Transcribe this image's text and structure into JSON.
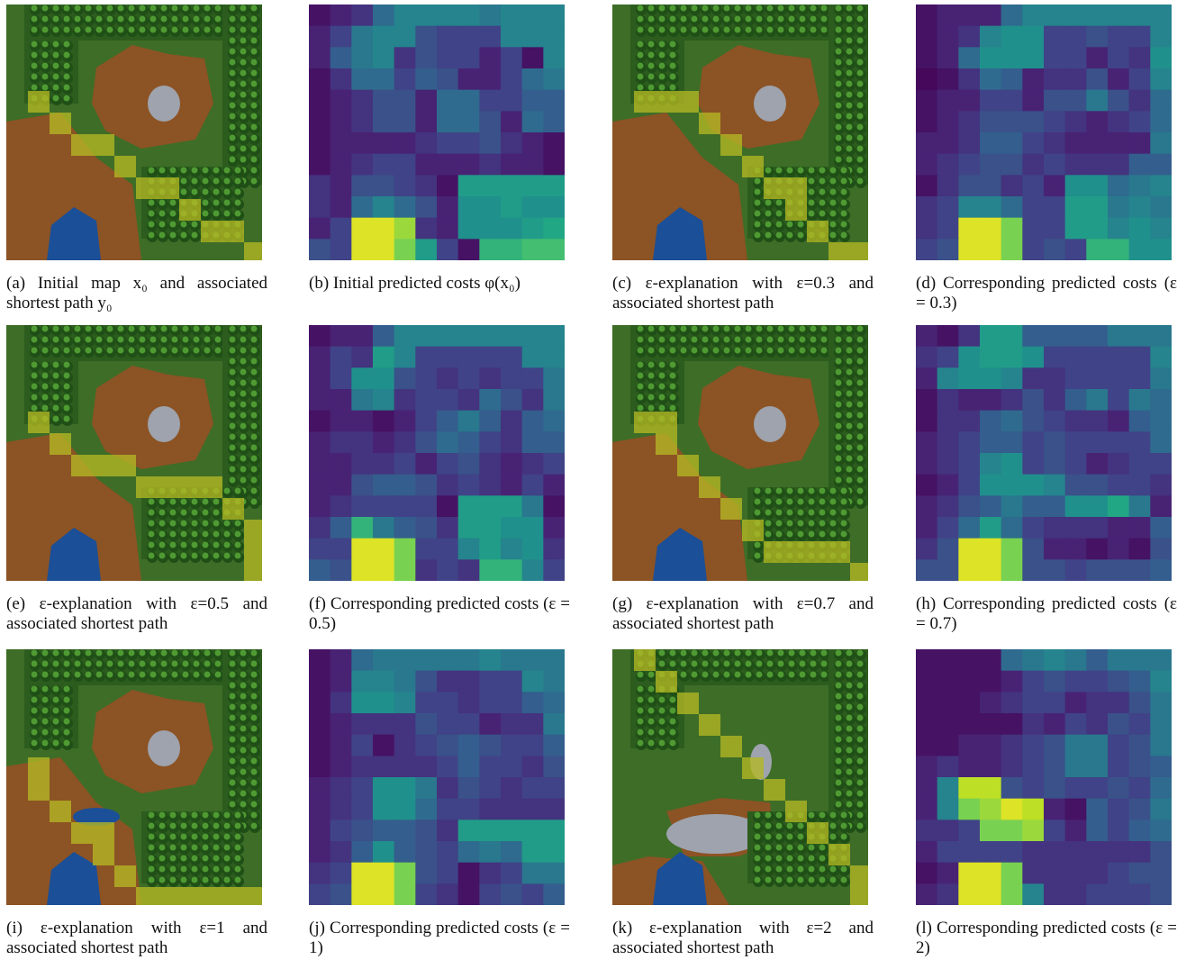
{
  "figures": [
    {
      "id": "a",
      "kind": "map",
      "variant": 0,
      "caption": "(a) Initial map x₀ and associated shortest path y₀"
    },
    {
      "id": "b",
      "kind": "cost",
      "caption": "(b) Initial predicted costs φ(x₀)"
    },
    {
      "id": "c",
      "kind": "map",
      "variant": 1,
      "caption": "(c) ε-explanation with ε=0.3 and associated shortest path"
    },
    {
      "id": "d",
      "kind": "cost",
      "caption": "(d) Corresponding predicted costs (ε = 0.3)"
    },
    {
      "id": "e",
      "kind": "map",
      "variant": 2,
      "caption": "(e) ε-explanation with ε=0.5 and associated shortest path"
    },
    {
      "id": "f",
      "kind": "cost",
      "caption": "(f) Corresponding predicted costs (ε = 0.5)"
    },
    {
      "id": "g",
      "kind": "map",
      "variant": 3,
      "caption": "(g) ε-explanation with ε=0.7 and associated shortest path"
    },
    {
      "id": "h",
      "kind": "cost",
      "caption": "(h) Corresponding predicted costs (ε = 0.7)"
    },
    {
      "id": "i",
      "kind": "map",
      "variant": 4,
      "caption": "(i) ε-explanation with ε=1 and associated shortest path"
    },
    {
      "id": "j",
      "kind": "cost",
      "caption": "(j) Corresponding predicted costs (ε = 1)"
    },
    {
      "id": "k",
      "kind": "map",
      "variant": 5,
      "caption": "(k) ε-explanation with ε=2 and associated shortest path"
    },
    {
      "id": "l",
      "kind": "cost",
      "caption": "(l) Corresponding predicted costs (ε = 2)"
    }
  ],
  "cost_grids": {
    "b": [
      [
        0.05,
        0.1,
        0.15,
        0.35,
        0.45,
        0.45,
        0.45,
        0.45,
        0.4,
        0.45,
        0.45,
        0.45
      ],
      [
        0.1,
        0.2,
        0.4,
        0.45,
        0.45,
        0.25,
        0.2,
        0.2,
        0.2,
        0.45,
        0.45,
        0.45
      ],
      [
        0.1,
        0.3,
        0.4,
        0.45,
        0.15,
        0.25,
        0.2,
        0.2,
        0.1,
        0.2,
        0.05,
        0.45
      ],
      [
        0.05,
        0.15,
        0.35,
        0.35,
        0.2,
        0.3,
        0.25,
        0.1,
        0.1,
        0.2,
        0.35,
        0.4
      ],
      [
        0.05,
        0.1,
        0.15,
        0.25,
        0.25,
        0.1,
        0.35,
        0.35,
        0.2,
        0.2,
        0.3,
        0.3
      ],
      [
        0.05,
        0.1,
        0.15,
        0.25,
        0.25,
        0.1,
        0.35,
        0.35,
        0.25,
        0.1,
        0.35,
        0.3
      ],
      [
        0.05,
        0.1,
        0.1,
        0.1,
        0.1,
        0.15,
        0.2,
        0.2,
        0.25,
        0.15,
        0.1,
        0.05
      ],
      [
        0.05,
        0.1,
        0.15,
        0.2,
        0.2,
        0.1,
        0.1,
        0.1,
        0.15,
        0.1,
        0.1,
        0.05
      ],
      [
        0.15,
        0.1,
        0.25,
        0.25,
        0.2,
        0.15,
        0.05,
        0.55,
        0.55,
        0.55,
        0.55,
        0.55
      ],
      [
        0.15,
        0.1,
        0.35,
        0.45,
        0.35,
        0.25,
        0.1,
        0.5,
        0.5,
        0.55,
        0.5,
        0.5
      ],
      [
        0.1,
        0.2,
        0.95,
        0.95,
        0.85,
        0.15,
        0.1,
        0.5,
        0.5,
        0.5,
        0.55,
        0.6
      ],
      [
        0.25,
        0.2,
        0.95,
        0.95,
        0.8,
        0.55,
        0.2,
        0.05,
        0.65,
        0.65,
        0.7,
        0.7
      ]
    ],
    "d": [
      [
        0.05,
        0.1,
        0.1,
        0.1,
        0.35,
        0.45,
        0.45,
        0.45,
        0.45,
        0.45,
        0.45,
        0.45
      ],
      [
        0.05,
        0.1,
        0.15,
        0.45,
        0.5,
        0.5,
        0.2,
        0.2,
        0.25,
        0.2,
        0.2,
        0.45
      ],
      [
        0.05,
        0.1,
        0.35,
        0.5,
        0.5,
        0.5,
        0.2,
        0.2,
        0.1,
        0.2,
        0.15,
        0.5
      ],
      [
        0.02,
        0.05,
        0.15,
        0.35,
        0.3,
        0.1,
        0.15,
        0.15,
        0.25,
        0.1,
        0.2,
        0.45
      ],
      [
        0.05,
        0.1,
        0.1,
        0.2,
        0.2,
        0.1,
        0.25,
        0.25,
        0.4,
        0.25,
        0.15,
        0.35
      ],
      [
        0.05,
        0.1,
        0.15,
        0.25,
        0.25,
        0.25,
        0.2,
        0.15,
        0.1,
        0.15,
        0.2,
        0.35
      ],
      [
        0.1,
        0.1,
        0.15,
        0.3,
        0.3,
        0.2,
        0.15,
        0.1,
        0.1,
        0.1,
        0.1,
        0.4
      ],
      [
        0.1,
        0.15,
        0.2,
        0.25,
        0.25,
        0.15,
        0.2,
        0.15,
        0.15,
        0.15,
        0.3,
        0.3
      ],
      [
        0.05,
        0.15,
        0.25,
        0.25,
        0.15,
        0.2,
        0.1,
        0.5,
        0.5,
        0.35,
        0.4,
        0.45
      ],
      [
        0.15,
        0.2,
        0.45,
        0.45,
        0.35,
        0.2,
        0.2,
        0.55,
        0.55,
        0.4,
        0.45,
        0.4
      ],
      [
        0.15,
        0.2,
        0.95,
        0.95,
        0.8,
        0.2,
        0.2,
        0.55,
        0.55,
        0.45,
        0.5,
        0.45
      ],
      [
        0.2,
        0.25,
        0.95,
        0.95,
        0.8,
        0.2,
        0.25,
        0.2,
        0.65,
        0.65,
        0.5,
        0.5
      ]
    ],
    "f": [
      [
        0.05,
        0.1,
        0.1,
        0.3,
        0.45,
        0.45,
        0.45,
        0.45,
        0.45,
        0.45,
        0.45,
        0.45
      ],
      [
        0.1,
        0.2,
        0.15,
        0.55,
        0.45,
        0.2,
        0.2,
        0.2,
        0.2,
        0.2,
        0.45,
        0.45
      ],
      [
        0.1,
        0.2,
        0.5,
        0.5,
        0.25,
        0.2,
        0.15,
        0.2,
        0.15,
        0.2,
        0.2,
        0.4
      ],
      [
        0.1,
        0.1,
        0.4,
        0.45,
        0.15,
        0.2,
        0.2,
        0.15,
        0.35,
        0.25,
        0.15,
        0.4
      ],
      [
        0.05,
        0.1,
        0.1,
        0.05,
        0.1,
        0.2,
        0.3,
        0.4,
        0.3,
        0.15,
        0.3,
        0.35
      ],
      [
        0.1,
        0.15,
        0.15,
        0.1,
        0.15,
        0.25,
        0.35,
        0.3,
        0.2,
        0.15,
        0.3,
        0.3
      ],
      [
        0.1,
        0.1,
        0.15,
        0.15,
        0.2,
        0.1,
        0.2,
        0.25,
        0.15,
        0.1,
        0.15,
        0.2
      ],
      [
        0.1,
        0.1,
        0.25,
        0.3,
        0.3,
        0.25,
        0.15,
        0.2,
        0.15,
        0.1,
        0.2,
        0.1
      ],
      [
        0.1,
        0.15,
        0.2,
        0.2,
        0.2,
        0.2,
        0.05,
        0.55,
        0.55,
        0.55,
        0.4,
        0.05
      ],
      [
        0.15,
        0.3,
        0.65,
        0.4,
        0.3,
        0.25,
        0.15,
        0.55,
        0.55,
        0.5,
        0.5,
        0.1
      ],
      [
        0.2,
        0.2,
        0.95,
        0.95,
        0.8,
        0.2,
        0.2,
        0.45,
        0.55,
        0.45,
        0.5,
        0.15
      ],
      [
        0.3,
        0.25,
        0.95,
        0.95,
        0.8,
        0.15,
        0.2,
        0.15,
        0.65,
        0.65,
        0.45,
        0.2
      ]
    ],
    "h": [
      [
        0.1,
        0.05,
        0.15,
        0.55,
        0.55,
        0.3,
        0.3,
        0.3,
        0.3,
        0.4,
        0.4,
        0.4
      ],
      [
        0.15,
        0.2,
        0.5,
        0.55,
        0.55,
        0.5,
        0.2,
        0.2,
        0.2,
        0.2,
        0.2,
        0.45
      ],
      [
        0.1,
        0.45,
        0.5,
        0.5,
        0.45,
        0.15,
        0.15,
        0.2,
        0.2,
        0.2,
        0.2,
        0.4
      ],
      [
        0.05,
        0.15,
        0.1,
        0.1,
        0.15,
        0.25,
        0.15,
        0.3,
        0.4,
        0.2,
        0.4,
        0.35
      ],
      [
        0.05,
        0.15,
        0.15,
        0.3,
        0.35,
        0.25,
        0.2,
        0.15,
        0.15,
        0.1,
        0.3,
        0.35
      ],
      [
        0.1,
        0.15,
        0.2,
        0.3,
        0.3,
        0.2,
        0.25,
        0.2,
        0.2,
        0.2,
        0.2,
        0.35
      ],
      [
        0.1,
        0.15,
        0.2,
        0.45,
        0.5,
        0.2,
        0.25,
        0.2,
        0.1,
        0.15,
        0.2,
        0.2
      ],
      [
        0.05,
        0.1,
        0.2,
        0.5,
        0.5,
        0.5,
        0.45,
        0.25,
        0.25,
        0.2,
        0.2,
        0.15
      ],
      [
        0.1,
        0.15,
        0.25,
        0.3,
        0.4,
        0.3,
        0.3,
        0.5,
        0.5,
        0.6,
        0.4,
        0.1
      ],
      [
        0.1,
        0.2,
        0.35,
        0.55,
        0.35,
        0.2,
        0.15,
        0.15,
        0.15,
        0.1,
        0.1,
        0.3
      ],
      [
        0.15,
        0.25,
        0.95,
        0.95,
        0.8,
        0.25,
        0.1,
        0.1,
        0.05,
        0.1,
        0.05,
        0.25
      ],
      [
        0.25,
        0.25,
        0.95,
        0.95,
        0.8,
        0.25,
        0.25,
        0.2,
        0.25,
        0.25,
        0.25,
        0.3
      ]
    ],
    "j": [
      [
        0.05,
        0.1,
        0.35,
        0.4,
        0.4,
        0.4,
        0.4,
        0.4,
        0.45,
        0.4,
        0.4,
        0.4
      ],
      [
        0.05,
        0.1,
        0.45,
        0.45,
        0.4,
        0.25,
        0.15,
        0.15,
        0.2,
        0.2,
        0.45,
        0.4
      ],
      [
        0.05,
        0.15,
        0.5,
        0.5,
        0.45,
        0.2,
        0.2,
        0.15,
        0.2,
        0.2,
        0.3,
        0.35
      ],
      [
        0.05,
        0.1,
        0.15,
        0.15,
        0.15,
        0.25,
        0.2,
        0.2,
        0.1,
        0.15,
        0.15,
        0.4
      ],
      [
        0.05,
        0.1,
        0.2,
        0.05,
        0.15,
        0.2,
        0.25,
        0.3,
        0.25,
        0.2,
        0.2,
        0.3
      ],
      [
        0.05,
        0.1,
        0.15,
        0.15,
        0.15,
        0.15,
        0.2,
        0.3,
        0.2,
        0.2,
        0.15,
        0.25
      ],
      [
        0.1,
        0.15,
        0.2,
        0.5,
        0.5,
        0.4,
        0.15,
        0.25,
        0.2,
        0.15,
        0.2,
        0.2
      ],
      [
        0.1,
        0.15,
        0.2,
        0.5,
        0.5,
        0.35,
        0.2,
        0.2,
        0.15,
        0.15,
        0.15,
        0.15
      ],
      [
        0.1,
        0.2,
        0.25,
        0.3,
        0.3,
        0.25,
        0.15,
        0.55,
        0.55,
        0.55,
        0.55,
        0.55
      ],
      [
        0.1,
        0.15,
        0.3,
        0.5,
        0.3,
        0.25,
        0.2,
        0.35,
        0.4,
        0.35,
        0.55,
        0.55
      ],
      [
        0.15,
        0.2,
        0.95,
        0.95,
        0.8,
        0.25,
        0.2,
        0.05,
        0.15,
        0.2,
        0.4,
        0.4
      ],
      [
        0.2,
        0.25,
        0.95,
        0.95,
        0.8,
        0.2,
        0.15,
        0.05,
        0.2,
        0.25,
        0.2,
        0.3
      ]
    ],
    "l": [
      [
        0.05,
        0.05,
        0.05,
        0.05,
        0.35,
        0.4,
        0.45,
        0.4,
        0.3,
        0.4,
        0.4,
        0.4
      ],
      [
        0.05,
        0.05,
        0.05,
        0.05,
        0.1,
        0.2,
        0.25,
        0.2,
        0.2,
        0.25,
        0.3,
        0.45
      ],
      [
        0.05,
        0.05,
        0.05,
        0.1,
        0.15,
        0.2,
        0.2,
        0.1,
        0.15,
        0.15,
        0.25,
        0.4
      ],
      [
        0.05,
        0.05,
        0.05,
        0.05,
        0.05,
        0.15,
        0.1,
        0.2,
        0.15,
        0.25,
        0.2,
        0.4
      ],
      [
        0.05,
        0.05,
        0.1,
        0.1,
        0.15,
        0.2,
        0.25,
        0.4,
        0.4,
        0.2,
        0.25,
        0.4
      ],
      [
        0.1,
        0.15,
        0.1,
        0.1,
        0.15,
        0.2,
        0.25,
        0.4,
        0.4,
        0.2,
        0.25,
        0.3
      ],
      [
        0.1,
        0.45,
        0.9,
        0.9,
        0.25,
        0.2,
        0.25,
        0.2,
        0.2,
        0.25,
        0.2,
        0.35
      ],
      [
        0.1,
        0.45,
        0.8,
        0.85,
        0.95,
        0.9,
        0.1,
        0.05,
        0.3,
        0.2,
        0.25,
        0.4
      ],
      [
        0.15,
        0.15,
        0.2,
        0.8,
        0.8,
        0.85,
        0.2,
        0.1,
        0.3,
        0.2,
        0.3,
        0.35
      ],
      [
        0.1,
        0.2,
        0.2,
        0.2,
        0.2,
        0.15,
        0.15,
        0.15,
        0.15,
        0.15,
        0.15,
        0.25
      ],
      [
        0.05,
        0.1,
        0.95,
        0.95,
        0.8,
        0.15,
        0.15,
        0.15,
        0.15,
        0.2,
        0.25,
        0.25
      ],
      [
        0.1,
        0.15,
        0.95,
        0.95,
        0.8,
        0.45,
        0.15,
        0.15,
        0.2,
        0.2,
        0.2,
        0.25
      ]
    ]
  },
  "colors": {
    "grass": "#3e6d27",
    "forest": "#2c5d1e",
    "dirt": "#8c5324",
    "water": "#1b4f97",
    "rock": "#9ea3ad",
    "path": "#b4b724"
  }
}
